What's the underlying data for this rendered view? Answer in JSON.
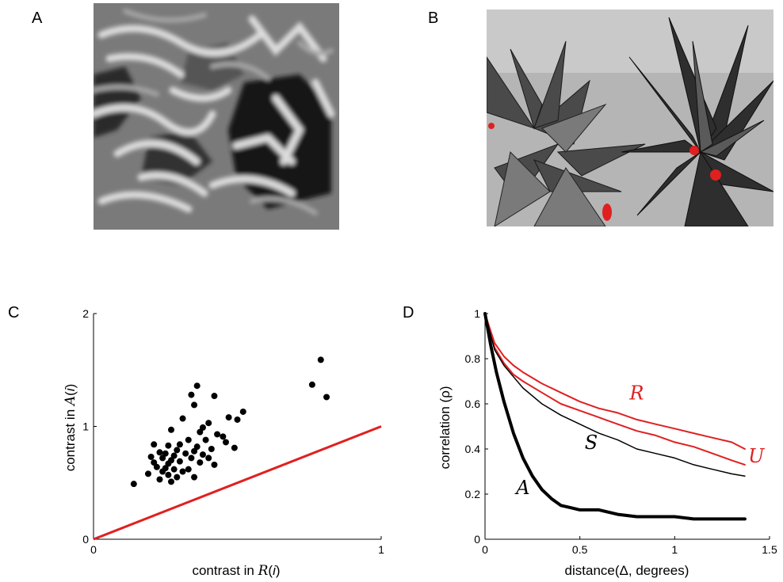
{
  "panels": {
    "A": {
      "letter": "A"
    },
    "B": {
      "letter": "B"
    },
    "C": {
      "letter": "C"
    },
    "D": {
      "letter": "D"
    }
  },
  "colors": {
    "red": "#e02020",
    "black": "#000000"
  },
  "chart_data": [
    {
      "panel": "C",
      "type": "scatter",
      "xlabel": "contrast in R(i)",
      "ylabel": "contrast in A(i)",
      "xlim": [
        0,
        1
      ],
      "ylim": [
        0,
        2
      ],
      "xticks": [
        "0",
        "1"
      ],
      "yticks": [
        "0",
        "1",
        "2"
      ],
      "identity_line": {
        "from": [
          0,
          0
        ],
        "to": [
          1,
          1
        ],
        "color": "#e02020"
      },
      "points": [
        [
          0.79,
          1.59
        ],
        [
          0.76,
          1.37
        ],
        [
          0.81,
          1.26
        ],
        [
          0.36,
          1.36
        ],
        [
          0.34,
          1.28
        ],
        [
          0.42,
          1.27
        ],
        [
          0.35,
          1.19
        ],
        [
          0.31,
          1.07
        ],
        [
          0.52,
          1.13
        ],
        [
          0.47,
          1.08
        ],
        [
          0.5,
          1.06
        ],
        [
          0.4,
          1.03
        ],
        [
          0.38,
          0.99
        ],
        [
          0.37,
          0.95
        ],
        [
          0.43,
          0.93
        ],
        [
          0.27,
          0.97
        ],
        [
          0.45,
          0.91
        ],
        [
          0.39,
          0.88
        ],
        [
          0.33,
          0.88
        ],
        [
          0.46,
          0.86
        ],
        [
          0.26,
          0.83
        ],
        [
          0.3,
          0.84
        ],
        [
          0.21,
          0.84
        ],
        [
          0.36,
          0.82
        ],
        [
          0.41,
          0.8
        ],
        [
          0.49,
          0.81
        ],
        [
          0.29,
          0.79
        ],
        [
          0.35,
          0.78
        ],
        [
          0.23,
          0.77
        ],
        [
          0.25,
          0.76
        ],
        [
          0.32,
          0.76
        ],
        [
          0.38,
          0.75
        ],
        [
          0.28,
          0.74
        ],
        [
          0.2,
          0.73
        ],
        [
          0.34,
          0.72
        ],
        [
          0.24,
          0.72
        ],
        [
          0.27,
          0.7
        ],
        [
          0.3,
          0.69
        ],
        [
          0.37,
          0.68
        ],
        [
          0.21,
          0.68
        ],
        [
          0.26,
          0.67
        ],
        [
          0.42,
          0.66
        ],
        [
          0.22,
          0.64
        ],
        [
          0.25,
          0.63
        ],
        [
          0.28,
          0.62
        ],
        [
          0.33,
          0.62
        ],
        [
          0.24,
          0.6
        ],
        [
          0.31,
          0.6
        ],
        [
          0.19,
          0.58
        ],
        [
          0.26,
          0.57
        ],
        [
          0.29,
          0.55
        ],
        [
          0.35,
          0.55
        ],
        [
          0.23,
          0.53
        ],
        [
          0.14,
          0.49
        ],
        [
          0.27,
          0.51
        ],
        [
          0.4,
          0.72
        ]
      ]
    },
    {
      "panel": "D",
      "type": "line",
      "xlabel": "distance(Δ, degrees)",
      "ylabel": "correlation (ρ)",
      "xlim": [
        0,
        1.5
      ],
      "ylim": [
        0,
        1
      ],
      "xticks": [
        "0",
        "0.5",
        "1",
        "1.5"
      ],
      "yticks": [
        "0",
        "0.2",
        "0.4",
        "0.6",
        "0.8",
        "1"
      ],
      "series": [
        {
          "name": "R",
          "color": "#e02020",
          "width": 2,
          "x": [
            0,
            0.05,
            0.1,
            0.15,
            0.2,
            0.3,
            0.4,
            0.5,
            0.6,
            0.7,
            0.8,
            0.9,
            1.0,
            1.1,
            1.2,
            1.3,
            1.37
          ],
          "y": [
            1.0,
            0.87,
            0.81,
            0.77,
            0.74,
            0.69,
            0.65,
            0.61,
            0.58,
            0.56,
            0.53,
            0.51,
            0.49,
            0.47,
            0.45,
            0.43,
            0.4
          ]
        },
        {
          "name": "U",
          "color": "#e02020",
          "width": 2,
          "x": [
            0,
            0.05,
            0.1,
            0.15,
            0.2,
            0.3,
            0.4,
            0.5,
            0.6,
            0.7,
            0.8,
            0.9,
            1.0,
            1.1,
            1.2,
            1.3,
            1.37
          ],
          "y": [
            1.0,
            0.85,
            0.78,
            0.73,
            0.7,
            0.65,
            0.6,
            0.57,
            0.54,
            0.51,
            0.48,
            0.46,
            0.43,
            0.41,
            0.38,
            0.35,
            0.33
          ]
        },
        {
          "name": "S",
          "color": "#000000",
          "width": 1.5,
          "x": [
            0,
            0.05,
            0.1,
            0.15,
            0.2,
            0.3,
            0.4,
            0.5,
            0.6,
            0.7,
            0.8,
            0.9,
            1.0,
            1.1,
            1.2,
            1.3,
            1.37
          ],
          "y": [
            1.0,
            0.84,
            0.77,
            0.72,
            0.67,
            0.6,
            0.55,
            0.51,
            0.47,
            0.44,
            0.4,
            0.38,
            0.36,
            0.33,
            0.31,
            0.29,
            0.28
          ]
        },
        {
          "name": "A",
          "color": "#000000",
          "width": 4,
          "x": [
            0,
            0.03,
            0.06,
            0.1,
            0.15,
            0.2,
            0.25,
            0.3,
            0.35,
            0.4,
            0.45,
            0.5,
            0.6,
            0.7,
            0.8,
            0.9,
            1.0,
            1.1,
            1.2,
            1.3,
            1.37
          ],
          "y": [
            1.0,
            0.86,
            0.74,
            0.61,
            0.47,
            0.36,
            0.28,
            0.22,
            0.18,
            0.15,
            0.14,
            0.13,
            0.13,
            0.11,
            0.1,
            0.1,
            0.1,
            0.09,
            0.09,
            0.09,
            0.09
          ]
        }
      ]
    }
  ]
}
